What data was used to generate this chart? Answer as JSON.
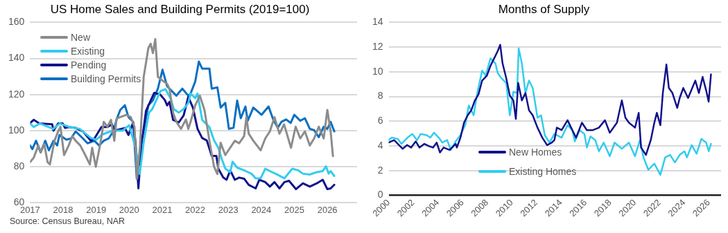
{
  "chart_data": [
    {
      "type": "line",
      "title": "US Home Sales and Building Permits (2019=100)",
      "xlim": [
        2017,
        2026.9
      ],
      "xticks": [
        2017,
        2018,
        2019,
        2020,
        2021,
        2022,
        2023,
        2024,
        2025,
        2026
      ],
      "ylim": [
        60,
        160
      ],
      "yticks": [
        60,
        80,
        100,
        120,
        140,
        160
      ],
      "grid": "y",
      "legend": "top left",
      "marker": "none",
      "line_style": "solid",
      "annotations": [
        "Source: Census Bureau, NAR"
      ],
      "series": [
        {
          "name": "New",
          "color": "#8c8c8c",
          "x": [
            2017.0,
            2017.11,
            2017.25,
            2017.32,
            2017.43,
            2017.53,
            2017.6,
            2017.74,
            2017.85,
            2017.92,
            2018.03,
            2018.17,
            2018.28,
            2018.38,
            2018.52,
            2018.67,
            2018.81,
            2018.88,
            2018.99,
            2019.13,
            2019.23,
            2019.34,
            2019.45,
            2019.55,
            2019.62,
            2019.73,
            2019.91,
            2020.05,
            2020.16,
            2020.24,
            2020.33,
            2020.44,
            2020.58,
            2020.65,
            2020.72,
            2020.79,
            2020.87,
            2021.01,
            2021.15,
            2021.22,
            2021.33,
            2021.43,
            2021.57,
            2021.72,
            2021.79,
            2021.86,
            2022.0,
            2022.14,
            2022.28,
            2022.43,
            2022.57,
            2022.67,
            2022.77,
            2022.91,
            2023.2,
            2023.33,
            2023.48,
            2023.55,
            2023.62,
            2023.76,
            2023.98,
            2024.12,
            2024.26,
            2024.4,
            2024.55,
            2024.69,
            2024.9,
            2025.04,
            2025.18,
            2025.32,
            2025.47,
            2025.6,
            2025.74,
            2025.89,
            2026.0,
            2026.1,
            2026.17
          ],
          "values": [
            82.6,
            85,
            91.8,
            88,
            92.6,
            82.6,
            81.3,
            94.4,
            99.6,
            102.2,
            86.5,
            91.8,
            97,
            94.4,
            91.8,
            86.5,
            81.3,
            90.5,
            80,
            93,
            104.9,
            102.2,
            106,
            94.4,
            106.7,
            107.5,
            108.8,
            107.5,
            102.2,
            73.4,
            91.8,
            129.8,
            145.6,
            148.2,
            143,
            150.8,
            129.8,
            127.8,
            125.9,
            123.3,
            110,
            104.9,
            101,
            106.2,
            101,
            104.9,
            114,
            119.4,
            111.5,
            94.4,
            80,
            76,
            93.3,
            86.5,
            94.4,
            93,
            97,
            107.5,
            98.3,
            94.4,
            89.1,
            95.7,
            99.6,
            107.5,
            98.3,
            103.5,
            90.5,
            102.2,
            95.7,
            99.6,
            91.8,
            95.7,
            102.2,
            95.7,
            111.5,
            99.6,
            85.9
          ]
        },
        {
          "name": "Existing",
          "color": "#33ccee",
          "x": [
            2017.0,
            2017.11,
            2017.3,
            2017.7,
            2017.9,
            2018.2,
            2018.5,
            2018.84,
            2019.0,
            2019.2,
            2019.5,
            2019.8,
            2020.0,
            2020.2,
            2020.32,
            2020.45,
            2020.6,
            2020.7,
            2020.85,
            2020.95,
            2021.1,
            2021.25,
            2021.35,
            2021.5,
            2021.65,
            2021.79,
            2021.86,
            2022.0,
            2022.07,
            2022.21,
            2022.43,
            2022.57,
            2022.7,
            2022.81,
            2022.91,
            2023.06,
            2023.13,
            2023.27,
            2023.48,
            2023.7,
            2023.83,
            2023.98,
            2024.12,
            2024.33,
            2024.48,
            2024.7,
            2024.94,
            2025.12,
            2025.26,
            2025.47,
            2025.68,
            2025.86,
            2025.96,
            2026.04,
            2026.1,
            2026.21
          ],
          "values": [
            104,
            102,
            104,
            101,
            104,
            102,
            101,
            96,
            95,
            98,
            100,
            100,
            103,
            90,
            76,
            95,
            110,
            112,
            118,
            122,
            123,
            118,
            112,
            110,
            112,
            115.4,
            120.6,
            118,
            120.6,
            106,
            102,
            94.6,
            90.5,
            84,
            79,
            77,
            82.8,
            79.5,
            78,
            76.2,
            73.6,
            73.6,
            78.9,
            77,
            75.7,
            73.6,
            78.9,
            78,
            76.2,
            75.7,
            77,
            77.6,
            80.2,
            76.2,
            77.6,
            74.9
          ]
        },
        {
          "name": "Pending",
          "color": "#12128c",
          "x": [
            2017.0,
            2017.11,
            2017.28,
            2017.67,
            2017.71,
            2017.85,
            2017.99,
            2018.06,
            2018.17,
            2018.38,
            2018.6,
            2018.84,
            2018.95,
            2019.16,
            2019.34,
            2019.48,
            2019.55,
            2019.87,
            2019.98,
            2020.12,
            2020.19,
            2020.28,
            2020.37,
            2020.51,
            2020.76,
            2020.94,
            2021.08,
            2021.15,
            2021.22,
            2021.33,
            2021.5,
            2021.65,
            2021.79,
            2021.93,
            2022.07,
            2022.21,
            2022.35,
            2022.5,
            2022.64,
            2022.7,
            2022.85,
            2022.95,
            2023.06,
            2023.2,
            2023.33,
            2023.48,
            2023.62,
            2023.83,
            2023.94,
            2024.12,
            2024.26,
            2024.4,
            2024.55,
            2024.7,
            2024.84,
            2025.05,
            2025.26,
            2025.47,
            2025.68,
            2025.86,
            2026.0,
            2026.1,
            2026.21
          ],
          "values": [
            104.2,
            106,
            104,
            103.5,
            100,
            104,
            104,
            101.5,
            102,
            101.5,
            99.6,
            94.4,
            95.7,
            102,
            102,
            103.5,
            100,
            101.5,
            97.6,
            104.5,
            94,
            68,
            91.8,
            111,
            121,
            120,
            117,
            114,
            116,
            106,
            104.5,
            108.5,
            118.7,
            112.8,
            101,
            95.9,
            94.6,
            86,
            86,
            78.9,
            74,
            72.8,
            78,
            72.8,
            74,
            73.4,
            70,
            68,
            72.8,
            71.5,
            69,
            71.5,
            68,
            71.5,
            72.2,
            67.6,
            70.8,
            69,
            70.8,
            72.8,
            67.6,
            68,
            70
          ]
        },
        {
          "name": "Building Permits",
          "color": "#0a6fc2",
          "x": [
            2017.0,
            2017.07,
            2017.18,
            2017.32,
            2017.46,
            2017.57,
            2017.71,
            2017.82,
            2017.89,
            2018.1,
            2018.24,
            2018.38,
            2018.6,
            2018.74,
            2018.95,
            2019.09,
            2019.23,
            2019.38,
            2019.52,
            2019.62,
            2019.73,
            2019.87,
            2019.98,
            2020.12,
            2020.23,
            2020.37,
            2020.44,
            2020.58,
            2020.72,
            2020.87,
            2021.01,
            2021.15,
            2021.29,
            2021.43,
            2021.61,
            2021.79,
            2021.86,
            2022.0,
            2022.11,
            2022.21,
            2022.43,
            2022.5,
            2022.67,
            2022.77,
            2022.91,
            2023.02,
            2023.16,
            2023.27,
            2023.38,
            2023.52,
            2023.59,
            2023.76,
            2024.01,
            2024.22,
            2024.36,
            2024.5,
            2024.61,
            2024.75,
            2024.89,
            2025.0,
            2025.18,
            2025.32,
            2025.47,
            2025.6,
            2025.74,
            2025.89,
            2026.0,
            2026.1,
            2026.21
          ],
          "values": [
            91.8,
            89.8,
            94.4,
            88,
            94.4,
            89.1,
            94.4,
            91.8,
            97.6,
            95,
            95.7,
            99.6,
            95.7,
            93,
            94.4,
            91.8,
            94.4,
            95.7,
            99.6,
            106.2,
            111.5,
            114.1,
            107.5,
            104.9,
            73.4,
            94.4,
            99.6,
            114.1,
            116.8,
            123.3,
            133.8,
            124.6,
            122,
            119.4,
            123.3,
            119.4,
            120.6,
            127.2,
            138.3,
            134.4,
            134.4,
            123.3,
            124,
            112.8,
            115.4,
            101,
            101.6,
            116.7,
            106.9,
            113.4,
            105.5,
            112.8,
            108.8,
            113.4,
            106.2,
            101.6,
            104.9,
            106.2,
            104.3,
            108.8,
            105.5,
            106.9,
            101,
            100.3,
            96.4,
            102.2,
            101,
            104.9,
            99.6
          ]
        }
      ]
    },
    {
      "type": "line",
      "title": "Months of Supply",
      "xlim": [
        2000,
        2027
      ],
      "xticks": [
        2000,
        2002,
        2004,
        2006,
        2008,
        2010,
        2012,
        2014,
        2016,
        2018,
        2020,
        2022,
        2024,
        2026
      ],
      "ylim": [
        0,
        14
      ],
      "yticks": [
        0,
        2,
        4,
        6,
        8,
        10,
        12,
        14
      ],
      "grid": "y",
      "legend": "bottom",
      "marker": "none",
      "line_style": "solid",
      "series": [
        {
          "name": "New Homes",
          "color": "#12128c",
          "x": [
            2000,
            2000.45,
            2000.84,
            2001.13,
            2001.5,
            2001.82,
            2002.2,
            2002.5,
            2002.9,
            2003.3,
            2003.6,
            2003.9,
            2004.17,
            2004.46,
            2004.95,
            2005.44,
            2005.54,
            2005.83,
            2006.12,
            2006.42,
            2006.71,
            2007.0,
            2007.3,
            2007.59,
            2007.98,
            2008.27,
            2008.57,
            2008.86,
            2009.06,
            2009.25,
            2009.55,
            2009.84,
            2010.13,
            2010.33,
            2010.52,
            2010.82,
            2011.11,
            2011.4,
            2011.7,
            2012.09,
            2012.48,
            2012.87,
            2013.26,
            2013.46,
            2013.66,
            2014.05,
            2014.53,
            2014.92,
            2015.22,
            2015.7,
            2016.1,
            2016.59,
            2017.08,
            2017.57,
            2017.96,
            2018.54,
            2018.94,
            2019.23,
            2019.52,
            2020.01,
            2020.31,
            2020.5,
            2020.9,
            2021.29,
            2021.58,
            2021.78,
            2022.07,
            2022.27,
            2022.56,
            2022.76,
            2023.05,
            2023.44,
            2023.64,
            2023.93,
            2024.32,
            2024.91,
            2025.2,
            2025.5,
            2025.79,
            2025.99,
            2026.18
          ],
          "values": [
            4.27,
            4.47,
            4.07,
            3.77,
            4.07,
            3.87,
            4.37,
            3.87,
            4.17,
            3.97,
            3.87,
            4.27,
            3.47,
            3.87,
            3.67,
            4.17,
            3.87,
            4.67,
            5.88,
            6.48,
            6.88,
            7.68,
            8.18,
            9.29,
            9.69,
            10.49,
            11.09,
            11.69,
            12.19,
            10.69,
            9.49,
            8.08,
            7.68,
            6.18,
            9.09,
            7.68,
            8.28,
            6.88,
            6.48,
            5.48,
            4.67,
            4.07,
            4.27,
            4.47,
            5.48,
            5.28,
            6.08,
            5.28,
            4.67,
            5.88,
            5.28,
            5.28,
            5.48,
            6.08,
            5.07,
            5.88,
            7.68,
            6.28,
            5.88,
            5.48,
            6.68,
            3.87,
            3.27,
            4.47,
            5.88,
            6.68,
            5.68,
            8.28,
            10.59,
            8.69,
            8.28,
            7.08,
            7.88,
            8.69,
            7.88,
            9.29,
            8.28,
            9.59,
            8.49,
            7.58,
            9.79
          ]
        },
        {
          "name": "Existing Homes",
          "color": "#33ccee",
          "x": [
            2000,
            2000.25,
            2000.74,
            2001.04,
            2001.53,
            2001.92,
            2002.31,
            2002.6,
            2003.09,
            2003.38,
            2003.68,
            2004.07,
            2004.36,
            2004.75,
            2005.05,
            2005.44,
            2005.83,
            2006.22,
            2006.51,
            2006.9,
            2007.2,
            2007.59,
            2007.88,
            2008.27,
            2008.67,
            2008.86,
            2009.15,
            2009.55,
            2009.84,
            2010.13,
            2010.43,
            2010.56,
            2010.82,
            2011.11,
            2011.4,
            2011.7,
            2012.09,
            2012.38,
            2012.68,
            2013.07,
            2013.46,
            2014.05,
            2014.53,
            2014.92,
            2015.12,
            2015.51,
            2015.9,
            2016.1,
            2016.39,
            2016.78,
            2017.08,
            2017.47,
            2017.96,
            2018.35,
            2018.94,
            2019.52,
            2020.01,
            2020.41,
            2020.7,
            2021.09,
            2021.58,
            2022.07,
            2022.46,
            2022.86,
            2023.25,
            2023.64,
            2024.03,
            2024.23,
            2024.62,
            2025.01,
            2025.4,
            2025.79,
            2026.0,
            2026.18
          ],
          "values": [
            4.47,
            4.67,
            4.57,
            4.17,
            4.67,
            4.97,
            4.47,
            4.97,
            4.87,
            4.67,
            5.07,
            4.67,
            4.27,
            4.47,
            3.67,
            4.37,
            4.87,
            5.68,
            7.28,
            6.48,
            8.28,
            10.09,
            9.69,
            11.09,
            10.69,
            9.89,
            9.49,
            9.09,
            6.48,
            8.38,
            8.28,
            11.89,
            10.69,
            8.28,
            9.29,
            8.69,
            6.28,
            6.48,
            4.87,
            4.27,
            4.97,
            4.67,
            5.68,
            5.28,
            4.37,
            5.28,
            4.97,
            3.87,
            4.77,
            4.47,
            3.57,
            4.27,
            3.17,
            4.27,
            3.77,
            4.27,
            3.17,
            4.47,
            3.07,
            2.07,
            2.57,
            1.66,
            3.07,
            3.27,
            2.67,
            3.27,
            3.57,
            3.07,
            4.07,
            3.37,
            4.57,
            4.27,
            3.57,
            4.17
          ]
        }
      ]
    }
  ]
}
